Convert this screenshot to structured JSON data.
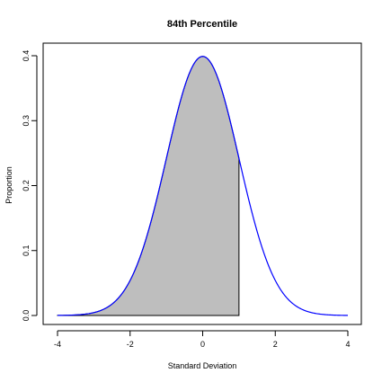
{
  "chart_data": {
    "type": "area",
    "title": "84th Percentile",
    "xlabel": "Standard Deviation",
    "ylabel": "Proportion",
    "xlim": [
      -4,
      4
    ],
    "ylim": [
      0,
      0.4
    ],
    "x_ticks": [
      -4,
      -2,
      0,
      2,
      4
    ],
    "y_ticks": [
      0.0,
      0.1,
      0.2,
      0.3,
      0.4
    ],
    "x_tick_labels": [
      "-4",
      "-2",
      "0",
      "2",
      "4"
    ],
    "y_tick_labels": [
      "0.0",
      "0.1",
      "0.2",
      "0.3",
      "0.4"
    ],
    "series": [
      {
        "kind": "normal-density",
        "mean": 0,
        "sd": 1,
        "x_range": [
          -4,
          4
        ],
        "color": "#0000ff"
      }
    ],
    "shaded_region": {
      "x_from": -4,
      "x_to": 1,
      "fill": "#bebebe",
      "stroke": "#000000"
    },
    "grid": false,
    "legend": "none"
  }
}
